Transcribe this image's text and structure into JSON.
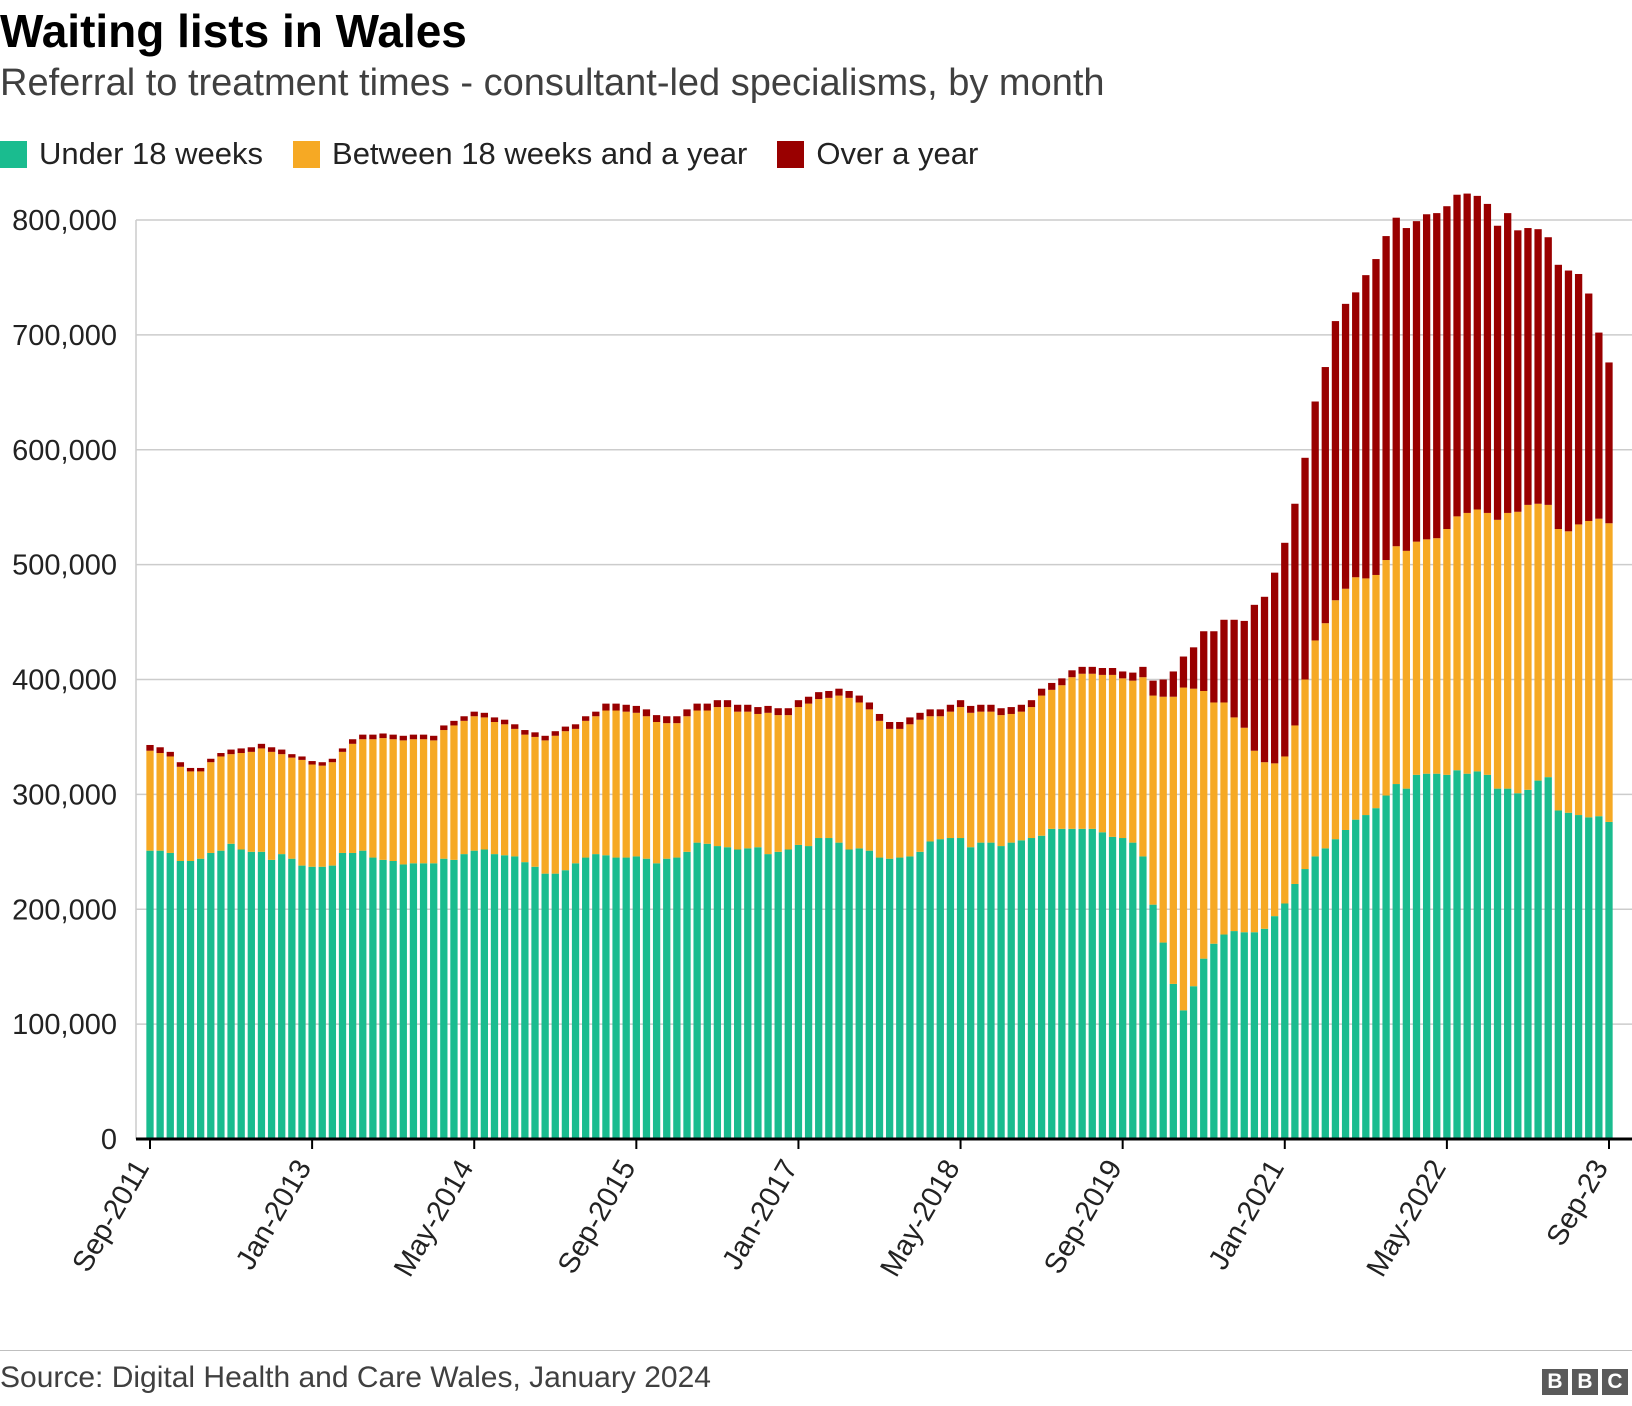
{
  "header": {
    "title": "Waiting lists in Wales",
    "subtitle": "Referral to treatment times - consultant-led specialisms, by month"
  },
  "footer": {
    "source": "Source: Digital Health and Care Wales, January 2024",
    "logo": [
      "B",
      "B",
      "C"
    ]
  },
  "colors": {
    "under18": "#1abc8f",
    "between": "#f6a924",
    "overYear": "#990000",
    "grid": "#cccccc",
    "axis": "#000000"
  },
  "chart_data": {
    "type": "bar",
    "stacked": true,
    "title": "Waiting lists in Wales",
    "subtitle": "Referral to treatment times - consultant-led specialisms, by month",
    "ylim": [
      0,
      800000
    ],
    "y_ticks": [
      0,
      100000,
      200000,
      300000,
      400000,
      500000,
      600000,
      700000,
      800000
    ],
    "y_tick_labels": [
      "0",
      "100,000",
      "200,000",
      "300,000",
      "400,000",
      "500,000",
      "600,000",
      "700,000",
      "800,000"
    ],
    "grid": true,
    "legend_position": "top-left",
    "x_start": "Sep-2011",
    "x_end": "Sep-2023",
    "x_tick_labels": [
      {
        "label": "Sep-2011",
        "index": 0
      },
      {
        "label": "Jan-2013",
        "index": 16
      },
      {
        "label": "May-2014",
        "index": 32
      },
      {
        "label": "Sep-2015",
        "index": 48
      },
      {
        "label": "Jan-2017",
        "index": 64
      },
      {
        "label": "May-2018",
        "index": 80
      },
      {
        "label": "Sep-2019",
        "index": 96
      },
      {
        "label": "Jan-2021",
        "index": 112
      },
      {
        "label": "May-2022",
        "index": 128
      },
      {
        "label": "Sep-23",
        "index": 144
      }
    ],
    "series": [
      {
        "name": "Under 18 weeks",
        "color": "#1abc8f",
        "values": [
          251000,
          251000,
          249000,
          242000,
          242000,
          244000,
          249000,
          251000,
          257000,
          252000,
          250000,
          250000,
          243000,
          248000,
          244000,
          238000,
          237000,
          237000,
          238000,
          249000,
          249000,
          251000,
          245000,
          243000,
          242000,
          239000,
          240000,
          240000,
          240000,
          244000,
          243000,
          248000,
          251000,
          252000,
          248000,
          247000,
          246000,
          241000,
          237000,
          231000,
          231000,
          234000,
          240000,
          245000,
          248000,
          247000,
          245000,
          245000,
          246000,
          244000,
          240000,
          244000,
          245000,
          250000,
          258000,
          257000,
          255000,
          254000,
          252000,
          253000,
          254000,
          248000,
          250000,
          252000,
          256000,
          255000,
          262000,
          262000,
          258000,
          252000,
          253000,
          251000,
          245000,
          244000,
          245000,
          246000,
          250000,
          259000,
          261000,
          262000,
          262000,
          254000,
          258000,
          258000,
          255000,
          258000,
          260000,
          262000,
          264000,
          270000,
          270000,
          270000,
          270000,
          270000,
          267000,
          263000,
          262000,
          258000,
          246000,
          204000,
          171000,
          135000,
          112000,
          133000,
          157000,
          170000,
          178000,
          181000,
          180000,
          180000,
          183000,
          194000,
          205000,
          222000,
          235000,
          246000,
          253000,
          261000,
          269000,
          278000,
          282000,
          288000,
          299000,
          309000,
          305000,
          317000,
          318000,
          318000,
          317000,
          321000,
          318000,
          320000,
          317000,
          305000,
          305000,
          301000,
          304000,
          312000,
          315000,
          286000,
          284000,
          282000,
          280000,
          281000,
          276000
        ],
        "note": "values are month-by-month estimates read from the chart (Sep-2011 to Sep-2023)"
      },
      {
        "name": "Between 18 weeks and a year",
        "color": "#f6a924",
        "values": [
          87000,
          85000,
          84000,
          82000,
          78000,
          76000,
          79000,
          82000,
          78000,
          84000,
          87000,
          90000,
          94000,
          87000,
          88000,
          92000,
          89000,
          88000,
          90000,
          88000,
          95000,
          97000,
          103000,
          106000,
          106000,
          108000,
          108000,
          108000,
          107000,
          112000,
          117000,
          116000,
          117000,
          115000,
          115000,
          114000,
          111000,
          111000,
          113000,
          116000,
          120000,
          121000,
          117000,
          119000,
          120000,
          126000,
          128000,
          127000,
          125000,
          124000,
          123000,
          118000,
          117000,
          118000,
          115000,
          116000,
          121000,
          122000,
          120000,
          119000,
          116000,
          123000,
          119000,
          117000,
          120000,
          124000,
          121000,
          122000,
          128000,
          132000,
          127000,
          123000,
          119000,
          113000,
          112000,
          115000,
          115000,
          109000,
          107000,
          110000,
          114000,
          117000,
          114000,
          114000,
          114000,
          112000,
          112000,
          114000,
          122000,
          121000,
          125000,
          132000,
          135000,
          135000,
          137000,
          141000,
          139000,
          141000,
          156000,
          182000,
          214000,
          250000,
          281000,
          259000,
          233000,
          210000,
          202000,
          186000,
          178000,
          158000,
          145000,
          133000,
          128000,
          138000,
          165000,
          188000,
          196000,
          208000,
          210000,
          211000,
          206000,
          203000,
          205000,
          207000,
          207000,
          203000,
          204000,
          205000,
          214000,
          221000,
          227000,
          228000,
          228000,
          234000,
          240000,
          245000,
          248000,
          241000,
          237000,
          245000,
          245000,
          253000,
          258000,
          259000,
          260000
        ],
        "note": "values are month-by-month estimates read from the chart (Sep-2011 to Sep-2023)"
      },
      {
        "name": "Over a year",
        "color": "#990000",
        "values": [
          5000,
          5000,
          4000,
          4000,
          3000,
          3000,
          3000,
          3000,
          4000,
          4000,
          4000,
          4000,
          4000,
          4000,
          3000,
          3000,
          3000,
          3000,
          3000,
          3000,
          4000,
          4000,
          4000,
          4000,
          4000,
          4000,
          4000,
          4000,
          4000,
          4000,
          4000,
          4000,
          4000,
          4000,
          4000,
          4000,
          4000,
          4000,
          4000,
          4000,
          4000,
          4000,
          4000,
          4000,
          4000,
          6000,
          6000,
          6000,
          6000,
          6000,
          6000,
          6000,
          6000,
          6000,
          6000,
          6000,
          6000,
          6000,
          6000,
          6000,
          6000,
          6000,
          6000,
          6000,
          6000,
          6000,
          6000,
          6000,
          6000,
          6000,
          6000,
          6000,
          6000,
          6000,
          6000,
          6000,
          6000,
          6000,
          6000,
          6000,
          6000,
          6000,
          6000,
          6000,
          6000,
          6000,
          6000,
          6000,
          6000,
          6000,
          6000,
          6000,
          6000,
          6000,
          6000,
          6000,
          6000,
          7000,
          9000,
          13000,
          15000,
          22000,
          27000,
          36000,
          52000,
          62000,
          72000,
          85000,
          93000,
          127000,
          144000,
          166000,
          186000,
          193000,
          193000,
          208000,
          223000,
          243000,
          248000,
          248000,
          264000,
          275000,
          282000,
          286000,
          281000,
          279000,
          283000,
          283000,
          281000,
          280000,
          278000,
          273000,
          269000,
          256000,
          261000,
          245000,
          241000,
          239000,
          233000,
          230000,
          227000,
          218000,
          198000,
          162000,
          140000
        ]
      }
    ]
  }
}
